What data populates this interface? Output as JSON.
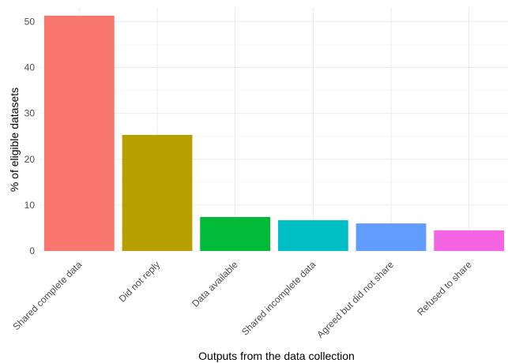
{
  "chart_data": {
    "type": "bar",
    "title": "",
    "xlabel": "Outputs from the data collection",
    "ylabel": "% of eligible datasets",
    "categories": [
      "Shared complete data",
      "Did not reply",
      "Data available",
      "Shared incomplete data",
      "Agreed but did not share",
      "Refused to share"
    ],
    "values": [
      51.3,
      25.3,
      7.4,
      6.7,
      6.0,
      4.5
    ],
    "colors": [
      "#F8766D",
      "#B79F00",
      "#00BA38",
      "#00BFC4",
      "#619CFF",
      "#F564E3"
    ],
    "ylim": [
      0,
      53
    ],
    "yticks": [
      0,
      10,
      20,
      30,
      40,
      50
    ],
    "grid": true,
    "legend": "none"
  }
}
